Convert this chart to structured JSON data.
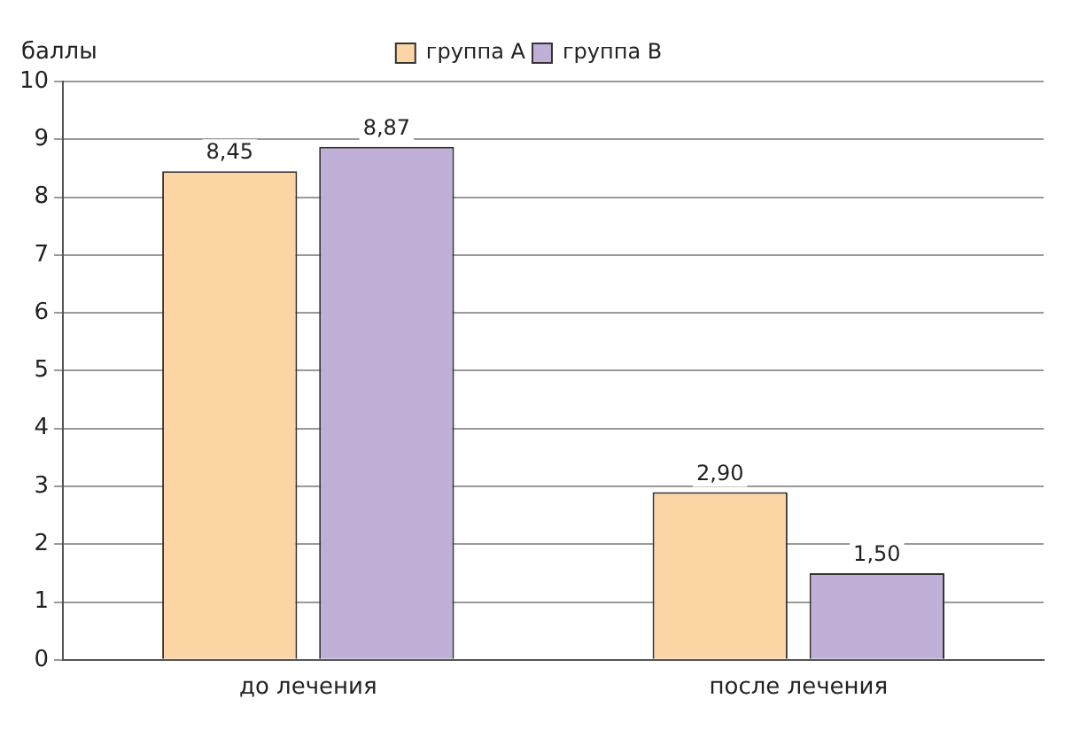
{
  "chart_data": {
    "type": "bar",
    "ylabel": "баллы",
    "categories": [
      "до лечения",
      "после лечения"
    ],
    "series": [
      {
        "name": "группа А",
        "color": "#fdd5a5",
        "values": [
          8.45,
          2.9
        ],
        "value_labels": [
          "8,45",
          "2,90"
        ]
      },
      {
        "name": "группа В",
        "color": "#c0afd6",
        "values": [
          8.87,
          1.5
        ],
        "value_labels": [
          "8,87",
          "1,50"
        ]
      }
    ],
    "ylim": [
      0,
      10
    ],
    "yticks": [
      0,
      1,
      2,
      3,
      4,
      5,
      6,
      7,
      8,
      9,
      10
    ],
    "grid": "y",
    "legend": "top"
  }
}
